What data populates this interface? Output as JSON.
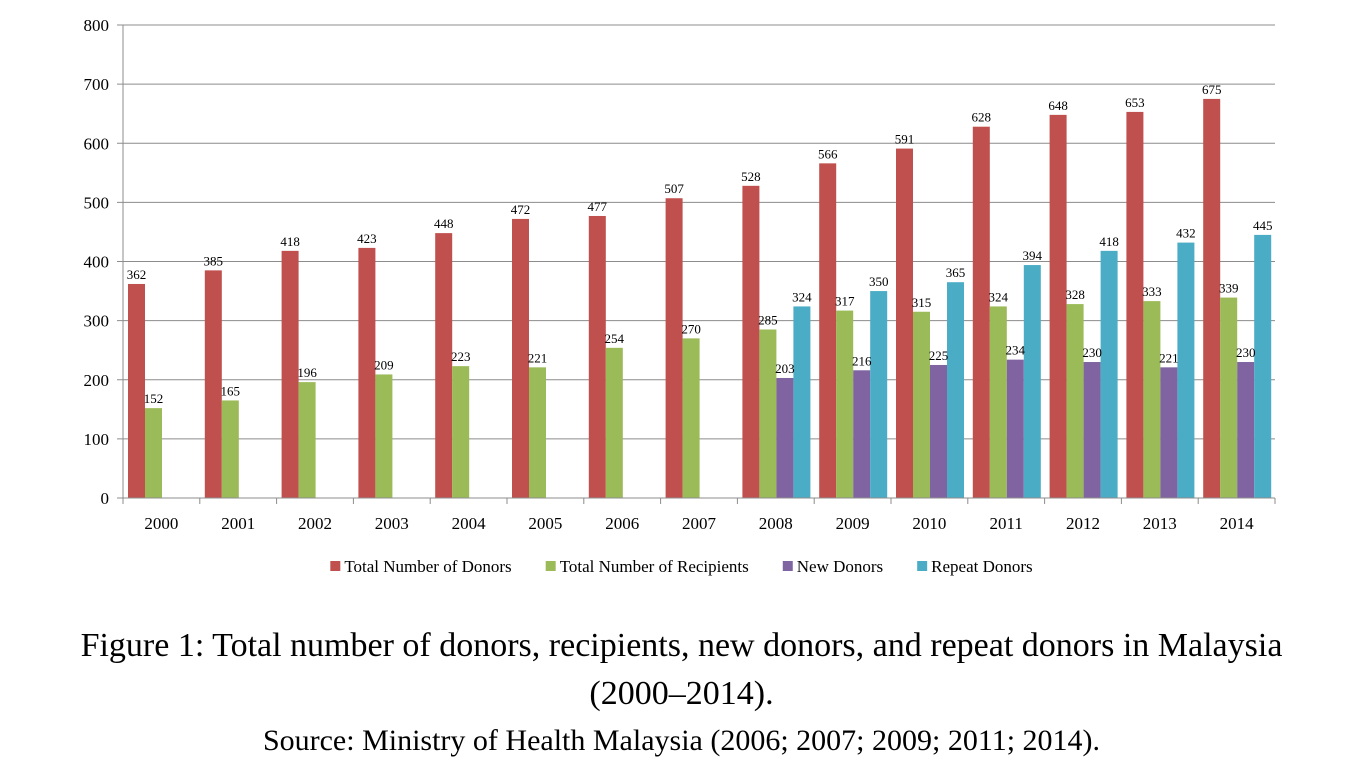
{
  "chart_data": {
    "type": "bar",
    "categories": [
      "2000",
      "2001",
      "2002",
      "2003",
      "2004",
      "2005",
      "2006",
      "2007",
      "2008",
      "2009",
      "2010",
      "2011",
      "2012",
      "2013",
      "2014"
    ],
    "series": [
      {
        "name": "Total Number of Donors",
        "color": "#c0504d",
        "values": [
          362,
          385,
          418,
          423,
          448,
          472,
          477,
          507,
          528,
          566,
          591,
          628,
          648,
          653,
          675
        ]
      },
      {
        "name": "Total Number of Recipients",
        "color": "#9bbb59",
        "values": [
          152,
          165,
          196,
          209,
          223,
          221,
          254,
          270,
          285,
          317,
          315,
          324,
          328,
          333,
          339
        ]
      },
      {
        "name": "New Donors",
        "color": "#8064a2",
        "values": [
          null,
          null,
          null,
          null,
          null,
          null,
          null,
          null,
          203,
          216,
          225,
          234,
          230,
          221,
          230
        ]
      },
      {
        "name": "Repeat Donors",
        "color": "#4bacc6",
        "values": [
          null,
          null,
          null,
          null,
          null,
          null,
          null,
          null,
          324,
          350,
          365,
          394,
          418,
          432,
          445
        ]
      }
    ],
    "yticks": [
      "0",
      "100",
      "200",
      "300",
      "400",
      "500",
      "600",
      "700",
      "800"
    ],
    "ylim": [
      0,
      800
    ],
    "grid": true,
    "legend_position": "bottom"
  },
  "caption": {
    "line1": "Figure 1: Total number of donors, recipients, new donors, and repeat donors in Malaysia",
    "line2": "(2000–2014).",
    "source": "Source: Ministry of Health Malaysia (2006; 2007; 2009; 2011; 2014)."
  }
}
